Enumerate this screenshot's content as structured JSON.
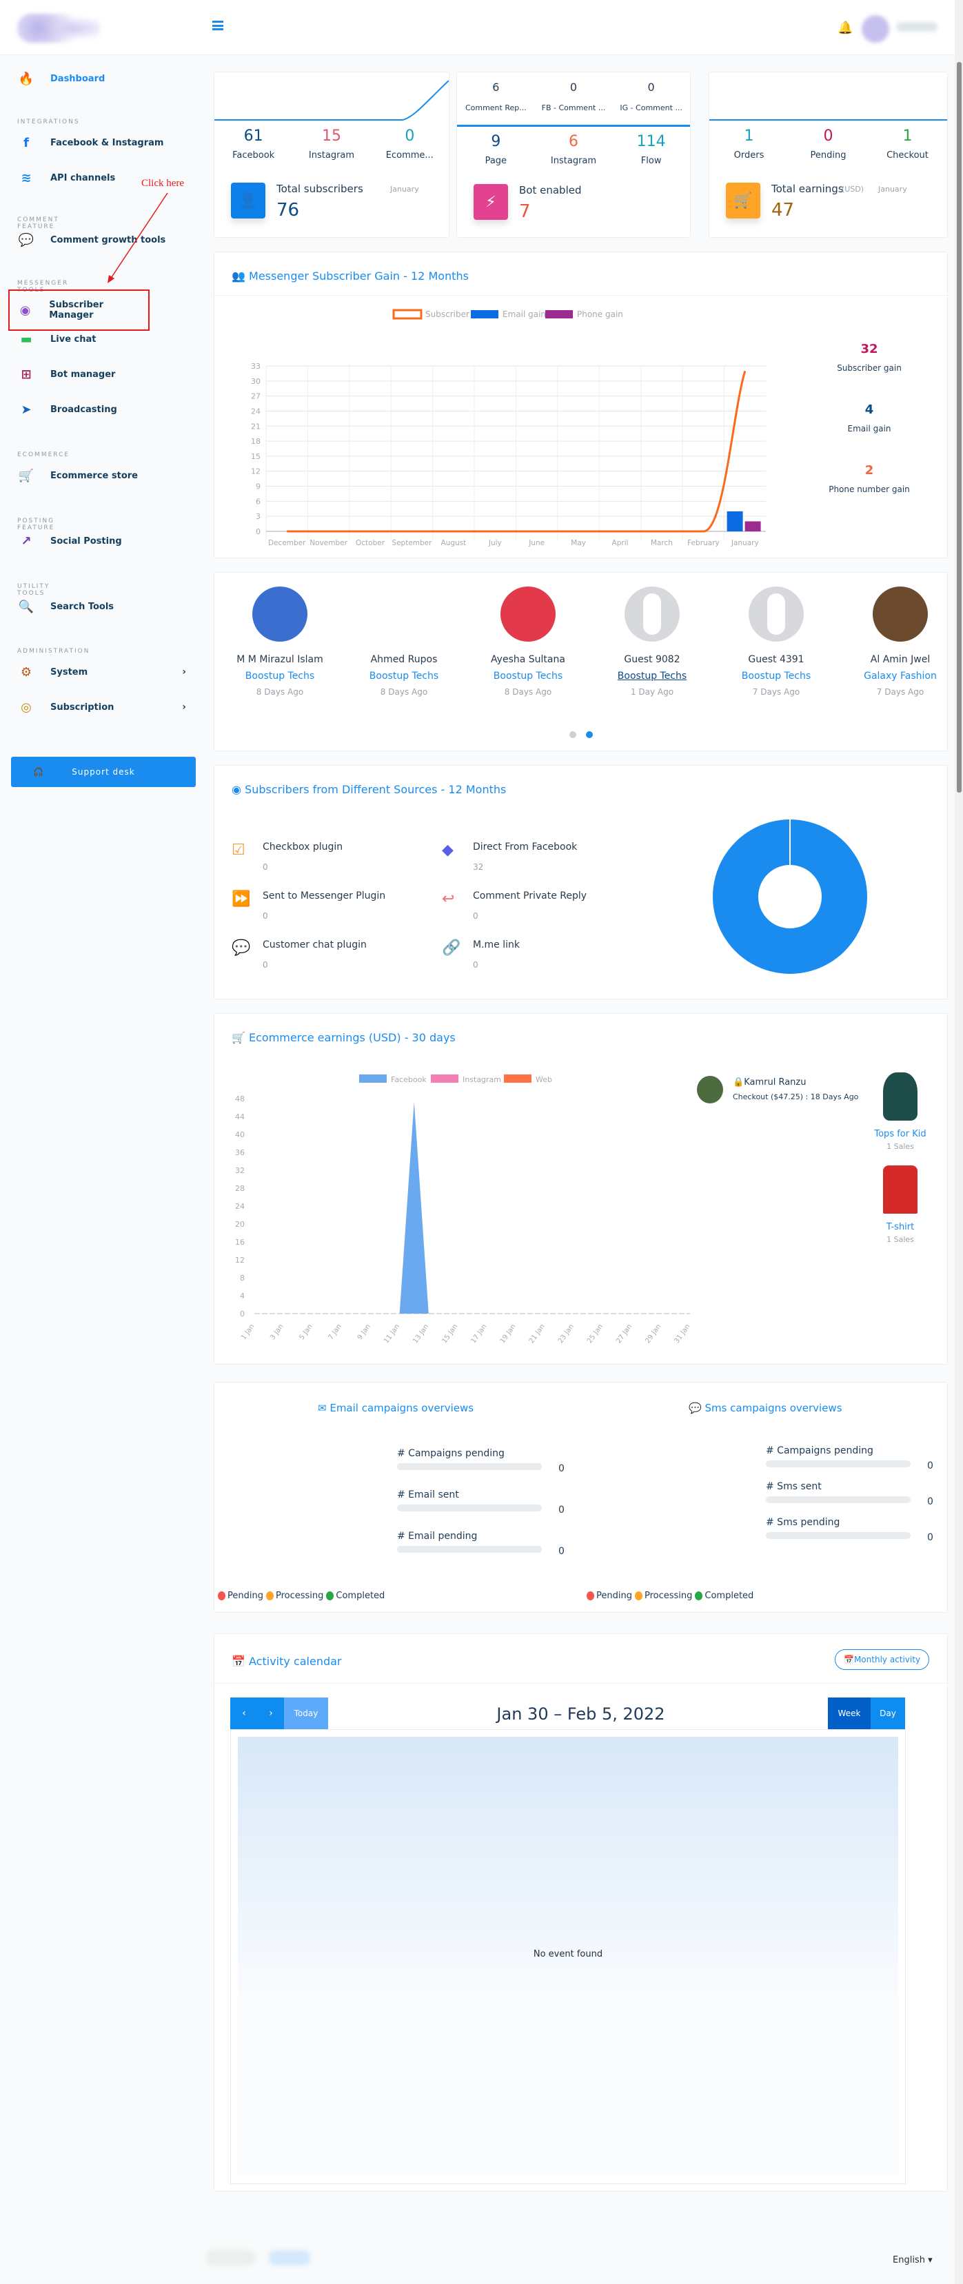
{
  "header": {
    "menu_icon": "hamburger-icon",
    "notification_icon": "bell-icon"
  },
  "annotation": {
    "text": "Click here",
    "color": "#e31b1b"
  },
  "sidebar": {
    "dashboard": "Dashboard",
    "sections": [
      "INTEGRATIONS",
      "COMMENT FEATURE",
      "MESSENGER TOOLS",
      "ECOMMERCE",
      "POSTING FEATURE",
      "UTILITY TOOLS",
      "ADMINISTRATION"
    ],
    "items": [
      {
        "label": "Facebook & Instagram",
        "icon": "facebook-icon"
      },
      {
        "label": "API channels",
        "icon": "wifi-icon"
      },
      {
        "label": "Comment growth tools",
        "icon": "comments-icon"
      },
      {
        "label": "Subscriber Manager",
        "icon": "user-circle-icon"
      },
      {
        "label": "Live chat",
        "icon": "chat-icon"
      },
      {
        "label": "Bot manager",
        "icon": "sitemap-icon"
      },
      {
        "label": "Broadcasting",
        "icon": "paper-plane-icon"
      },
      {
        "label": "Ecommerce store",
        "icon": "cart-icon"
      },
      {
        "label": "Social Posting",
        "icon": "share-icon"
      },
      {
        "label": "Search Tools",
        "icon": "search-icon"
      },
      {
        "label": "System",
        "icon": "gear-icon"
      },
      {
        "label": "Subscription",
        "icon": "coins-icon"
      }
    ],
    "support": "Support desk"
  },
  "cards": {
    "subscribers": {
      "stats": [
        {
          "n": "61",
          "l": "Facebook",
          "c": "#0d4a8a"
        },
        {
          "n": "15",
          "l": "Instagram",
          "c": "#e0566b"
        },
        {
          "n": "0",
          "l": "Ecomme...",
          "c": "#17a2b8"
        }
      ],
      "title": "Total subscribers",
      "period": "January",
      "value": "76"
    },
    "bot": {
      "top": [
        {
          "n": "6",
          "l": "Comment Rep..."
        },
        {
          "n": "0",
          "l": "FB - Comment ..."
        },
        {
          "n": "0",
          "l": "IG - Comment ..."
        }
      ],
      "stats": [
        {
          "n": "9",
          "l": "Page",
          "c": "#0d4a8a"
        },
        {
          "n": "6",
          "l": "Instagram",
          "c": "#f0683f"
        },
        {
          "n": "114",
          "l": "Flow",
          "c": "#17a2b8"
        }
      ],
      "title": "Bot enabled",
      "value": "7"
    },
    "earnings": {
      "stats": [
        {
          "n": "1",
          "l": "Orders",
          "c": "#17a2b8"
        },
        {
          "n": "0",
          "l": "Pending",
          "c": "#c2185b"
        },
        {
          "n": "1",
          "l": "Checkout",
          "c": "#28a745"
        }
      ],
      "title": "Total earnings",
      "currency": "(USD)",
      "period": "January",
      "value": "47"
    }
  },
  "gain": {
    "title": "Messenger Subscriber Gain - 12 Months",
    "summary": [
      {
        "n": "32",
        "l": "Subscriber gain",
        "c": "#c2185b"
      },
      {
        "n": "4",
        "l": "Email gain",
        "c": "#0d4a8a"
      },
      {
        "n": "2",
        "l": "Phone number gain",
        "c": "#f0683f"
      }
    ]
  },
  "chart_data": [
    {
      "type": "line",
      "categories": [
        "December",
        "November",
        "October",
        "September",
        "August",
        "July",
        "June",
        "May",
        "April",
        "March",
        "February",
        "January"
      ],
      "series": [
        {
          "name": "Subscriber gain",
          "type": "line",
          "color": "#f96a1b",
          "values": [
            0,
            0,
            0,
            0,
            0,
            0,
            0,
            0,
            0,
            0,
            0,
            32
          ]
        },
        {
          "name": "Email gain",
          "type": "bar",
          "color": "#0b6be0",
          "values": [
            0,
            0,
            0,
            0,
            0,
            0,
            0,
            0,
            0,
            0,
            0,
            4
          ]
        },
        {
          "name": "Phone gain",
          "type": "bar",
          "color": "#9c2a8f",
          "values": [
            0,
            0,
            0,
            0,
            0,
            0,
            0,
            0,
            0,
            0,
            0,
            2
          ]
        }
      ],
      "ylim": [
        0,
        33
      ],
      "yticks": [
        0,
        3,
        6,
        9,
        12,
        15,
        18,
        21,
        24,
        27,
        30,
        33
      ],
      "grid": true,
      "legend": "top"
    },
    {
      "type": "pie",
      "donut": true,
      "labels": [
        "Checkbox plugin",
        "Direct From Facebook",
        "Sent to Messenger Plugin",
        "Comment Private Reply",
        "Customer chat plugin",
        "M.me link"
      ],
      "values": [
        0,
        32,
        0,
        0,
        0,
        0
      ],
      "colors": [
        "#1a8cf0"
      ]
    },
    {
      "type": "area",
      "x": [
        "1 Jan",
        "2 Jan",
        "3 Jan",
        "4 Jan",
        "5 Jan",
        "6 Jan",
        "7 Jan",
        "8 Jan",
        "9 Jan",
        "10 Jan",
        "11 Jan",
        "12 Jan",
        "13 Jan",
        "14 Jan",
        "15 Jan",
        "16 Jan",
        "17 Jan",
        "18 Jan",
        "19 Jan",
        "20 Jan",
        "21 Jan",
        "22 Jan",
        "23 Jan",
        "24 Jan",
        "25 Jan",
        "26 Jan",
        "27 Jan",
        "28 Jan",
        "29 Jan",
        "30 Jan",
        "31 Jan"
      ],
      "xticks": [
        "1 Jan",
        "3 Jan",
        "5 Jan",
        "7 Jan",
        "9 Jan",
        "11 Jan",
        "13 Jan",
        "15 Jan",
        "17 Jan",
        "19 Jan",
        "21 Jan",
        "23 Jan",
        "25 Jan",
        "27 Jan",
        "29 Jan",
        "31 Jan"
      ],
      "series": [
        {
          "name": "Facebook",
          "color": "#6aa8f0",
          "values": [
            0,
            0,
            0,
            0,
            0,
            0,
            0,
            0,
            0,
            0,
            0,
            47.25,
            0,
            0,
            0,
            0,
            0,
            0,
            0,
            0,
            0,
            0,
            0,
            0,
            0,
            0,
            0,
            0,
            0,
            0,
            0
          ]
        },
        {
          "name": "Instagram",
          "color": "#f57fb5",
          "values": [
            0,
            0,
            0,
            0,
            0,
            0,
            0,
            0,
            0,
            0,
            0,
            0,
            0,
            0,
            0,
            0,
            0,
            0,
            0,
            0,
            0,
            0,
            0,
            0,
            0,
            0,
            0,
            0,
            0,
            0,
            0
          ]
        },
        {
          "name": "Web",
          "color": "#ff7043",
          "values": [
            0,
            0,
            0,
            0,
            0,
            0,
            0,
            0,
            0,
            0,
            0,
            0,
            0,
            0,
            0,
            0,
            0,
            0,
            0,
            0,
            0,
            0,
            0,
            0,
            0,
            0,
            0,
            0,
            0,
            0,
            0
          ]
        }
      ],
      "ylim": [
        0,
        48
      ],
      "yticks": [
        0,
        4,
        8,
        12,
        16,
        20,
        24,
        28,
        32,
        36,
        40,
        44,
        48
      ],
      "legend": "top"
    }
  ],
  "carousel": {
    "people": [
      {
        "name": "M M Mirazul Islam",
        "page": "Boostup Techs",
        "time": "8 Days Ago",
        "bg": "#3a6fd0"
      },
      {
        "name": "Ahmed Rupos",
        "page": "Boostup Techs",
        "time": "8 Days Ago",
        "bg": "#ffffff"
      },
      {
        "name": "Ayesha Sultana",
        "page": "Boostup Techs",
        "time": "8 Days Ago",
        "bg": "#e23a4a"
      },
      {
        "name": "Guest 9082",
        "page": "Boostup Techs",
        "time": "1 Day Ago",
        "bg": "#d7d9dd"
      },
      {
        "name": "Guest 4391",
        "page": "Boostup Techs",
        "time": "7 Days Ago",
        "bg": "#d7d9dd"
      },
      {
        "name": "Al Amin Jwel",
        "page": "Galaxy Fashion",
        "time": "7 Days Ago",
        "bg": "#6b4a2e"
      }
    ],
    "pages": 2,
    "active_page": 2
  },
  "sources": {
    "title": "Subscribers from Different Sources - 12 Months",
    "items": [
      {
        "label": "Checkbox plugin",
        "value": "0",
        "icon": "checkbox-icon",
        "color": "#f39c34",
        "glyph": "☑"
      },
      {
        "label": "Direct From Facebook",
        "value": "32",
        "icon": "direction-icon",
        "color": "#5b5fe6",
        "glyph": "◆"
      },
      {
        "label": "Sent to Messenger Plugin",
        "value": "0",
        "icon": "fast-forward-icon",
        "color": "#7a4fd6",
        "glyph": "⏩"
      },
      {
        "label": "Comment Private Reply",
        "value": "0",
        "icon": "reply-all-icon",
        "color": "#f26d6d",
        "glyph": "↩"
      },
      {
        "label": "Customer chat plugin",
        "value": "0",
        "icon": "wechat-icon",
        "color": "#5ad26a",
        "glyph": "💬"
      },
      {
        "label": "M.me link",
        "value": "0",
        "icon": "link-icon",
        "color": "#35b6f0",
        "glyph": "🔗"
      }
    ]
  },
  "ecommerce": {
    "title": "Ecommerce earnings (USD) - 30 days",
    "buyer": {
      "name": "Kamrul Ranzu",
      "detail": "Checkout ($47.25) : 18 Days Ago"
    },
    "products": [
      {
        "name": "Tops for Kid",
        "sales": "1 Sales",
        "color": "#1f4d4a"
      },
      {
        "name": "T-shirt",
        "sales": "1 Sales",
        "color": "#d42a2a"
      }
    ]
  },
  "email": {
    "title": "Email campaigns overviews",
    "rows": [
      {
        "l": "# Campaigns pending",
        "v": "0"
      },
      {
        "l": "# Email sent",
        "v": "0"
      },
      {
        "l": "# Email pending",
        "v": "0"
      }
    ]
  },
  "sms": {
    "title": "Sms campaigns overviews",
    "rows": [
      {
        "l": "# Campaigns pending",
        "v": "0"
      },
      {
        "l": "# Sms sent",
        "v": "0"
      },
      {
        "l": "# Sms pending",
        "v": "0"
      }
    ]
  },
  "status_legend": [
    {
      "l": "Pending",
      "c": "#f5554a"
    },
    {
      "l": "Processing",
      "c": "#ffa426"
    },
    {
      "l": "Completed",
      "c": "#28a745"
    }
  ],
  "calendar": {
    "title": "Activity calendar",
    "monthly": "Monthly activity",
    "prev": "‹",
    "next": "›",
    "today": "Today",
    "range": "Jan 30 – Feb 5, 2022",
    "week": "Week",
    "day": "Day",
    "empty": "No event found"
  },
  "footer": {
    "language": "English"
  }
}
